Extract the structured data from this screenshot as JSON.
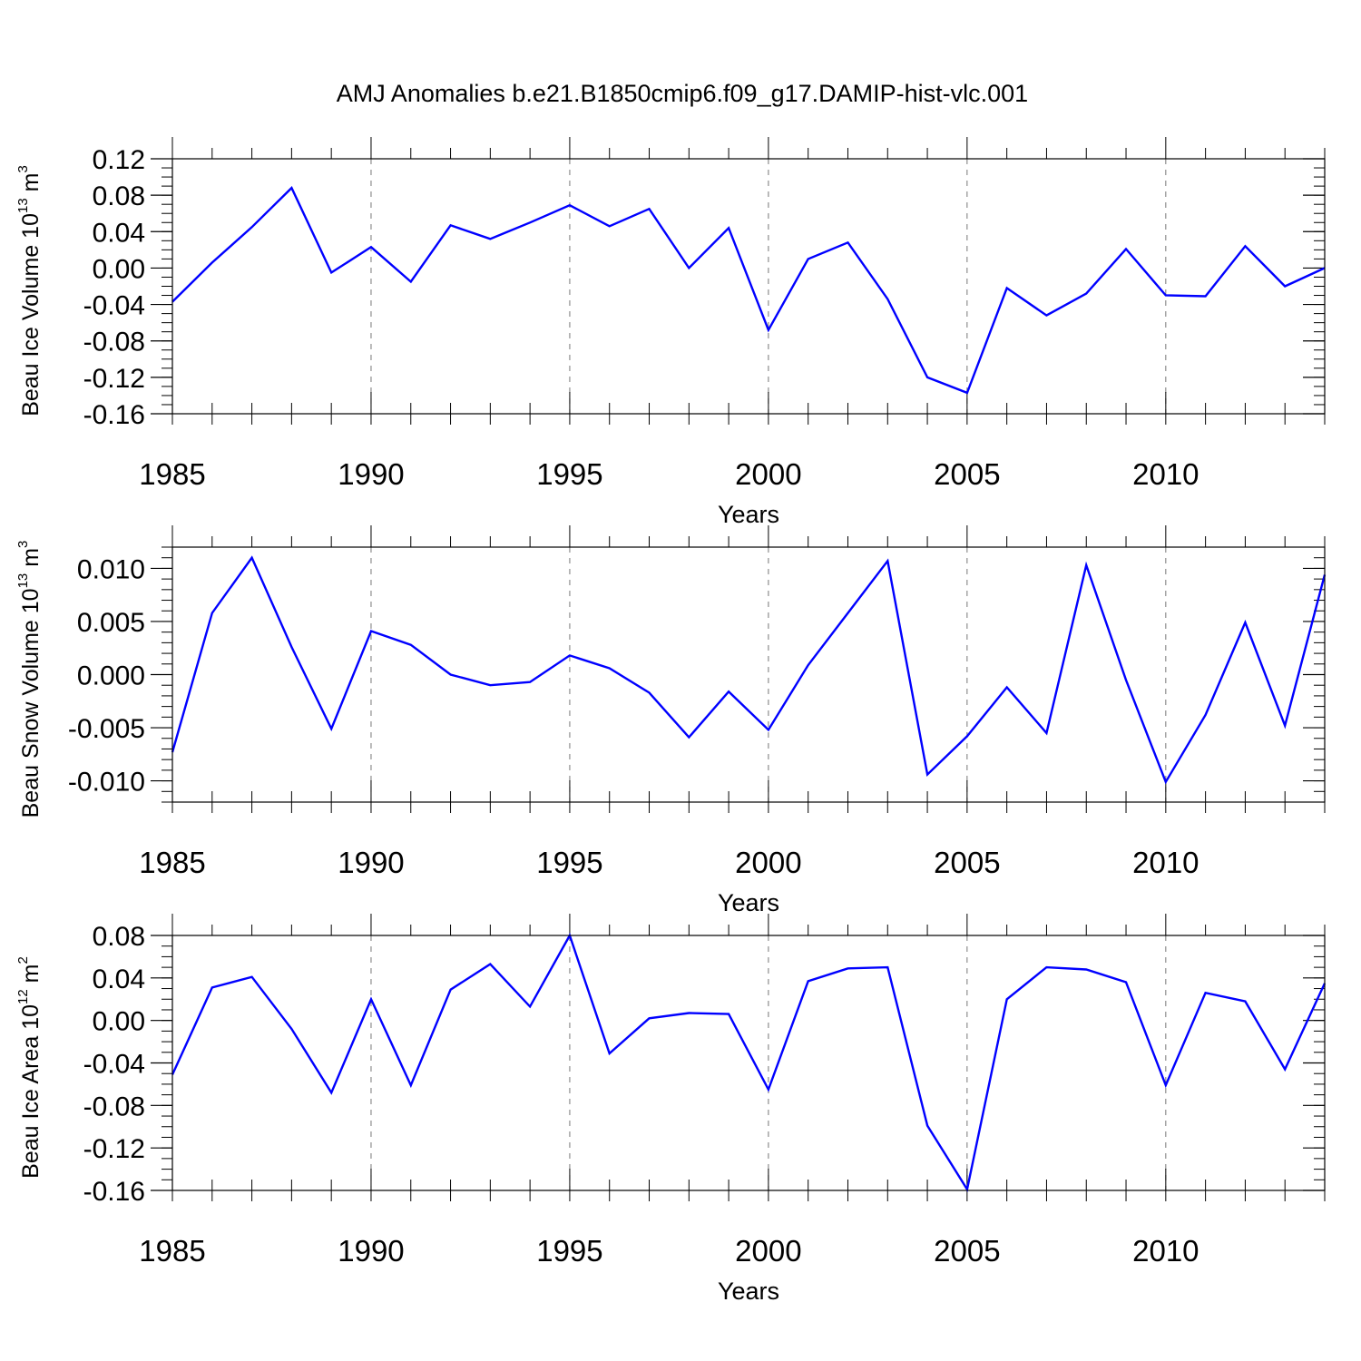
{
  "figure_title": "AMJ Anomalies b.e21.B1850cmip6.f09_g17.DAMIP-hist-vlc.001",
  "chart_data": [
    {
      "type": "line",
      "id": "ice-volume",
      "ylabel": {
        "main": "Beau Ice Volume 10",
        "sup": "13",
        "unit": " m",
        "unit_sup": "3"
      },
      "xlabel": "Years",
      "xlim": [
        1985,
        2014
      ],
      "ylim": [
        -0.16,
        0.12
      ],
      "x_ticks": [
        "1985",
        "1990",
        "1995",
        "2000",
        "2005",
        "2010"
      ],
      "y_ticks": [
        "0.12",
        "0.08",
        "0.04",
        "0.00",
        "-0.04",
        "-0.08",
        "-0.12",
        "-0.16"
      ],
      "y_tick_values": [
        0.12,
        0.08,
        0.04,
        0.0,
        -0.04,
        -0.08,
        -0.12,
        -0.16
      ],
      "y_minor_step": 0.01,
      "grid": "vertical dashed at 1990, 1995, 2000, 2005, 2010",
      "line_color": "#0000ff",
      "x": [
        1985,
        1986,
        1987,
        1988,
        1989,
        1990,
        1991,
        1992,
        1993,
        1994,
        1995,
        1996,
        1997,
        1998,
        1999,
        2000,
        2001,
        2002,
        2003,
        2004,
        2005,
        2006,
        2007,
        2008,
        2009,
        2010,
        2011,
        2012,
        2013,
        2014
      ],
      "values": [
        -0.037,
        0.006,
        0.045,
        0.088,
        -0.005,
        0.023,
        -0.015,
        0.047,
        0.032,
        0.05,
        0.069,
        0.046,
        0.065,
        0.0,
        0.044,
        -0.068,
        0.01,
        0.028,
        -0.034,
        -0.12,
        -0.137,
        -0.022,
        -0.052,
        -0.028,
        0.021,
        -0.03,
        -0.031,
        0.024,
        -0.02,
        0.0
      ]
    },
    {
      "type": "line",
      "id": "snow-volume",
      "ylabel": {
        "main": "Beau Snow Volume 10",
        "sup": "13",
        "unit": " m",
        "unit_sup": "3"
      },
      "xlabel": "Years",
      "xlim": [
        1985,
        2014
      ],
      "ylim": [
        -0.012,
        0.012
      ],
      "x_ticks": [
        "1985",
        "1990",
        "1995",
        "2000",
        "2005",
        "2010"
      ],
      "y_ticks": [
        "0.010",
        "0.005",
        "0.000",
        "-0.005",
        "-0.010"
      ],
      "y_tick_values": [
        0.01,
        0.005,
        0.0,
        -0.005,
        -0.01
      ],
      "y_minor_step": 0.001,
      "grid": "vertical dashed at 1990, 1995, 2000, 2005, 2010",
      "line_color": "#0000ff",
      "x": [
        1985,
        1986,
        1987,
        1988,
        1989,
        1990,
        1991,
        1992,
        1993,
        1994,
        1995,
        1996,
        1997,
        1998,
        1999,
        2000,
        2001,
        2002,
        2003,
        2004,
        2005,
        2006,
        2007,
        2008,
        2009,
        2010,
        2011,
        2012,
        2013,
        2014
      ],
      "values": [
        -0.0073,
        0.0058,
        0.011,
        0.0026,
        -0.0051,
        0.0041,
        0.0028,
        0.0,
        -0.001,
        -0.0007,
        0.0018,
        0.0006,
        -0.0017,
        -0.0059,
        -0.0016,
        -0.0052,
        0.0009,
        0.0058,
        0.0107,
        -0.0094,
        -0.0058,
        -0.0012,
        -0.0055,
        0.0103,
        -0.0005,
        -0.0101,
        -0.0038,
        0.0049,
        -0.0048,
        0.0094
      ]
    },
    {
      "type": "line",
      "id": "ice-area",
      "ylabel": {
        "main": "Beau Ice Area 10",
        "sup": "12",
        "unit": " m",
        "unit_sup": "2"
      },
      "xlabel": "Years",
      "xlim": [
        1985,
        2014
      ],
      "ylim": [
        -0.16,
        0.08
      ],
      "x_ticks": [
        "1985",
        "1990",
        "1995",
        "2000",
        "2005",
        "2010"
      ],
      "y_ticks": [
        "0.08",
        "0.04",
        "0.00",
        "-0.04",
        "-0.08",
        "-0.12",
        "-0.16"
      ],
      "y_tick_values": [
        0.08,
        0.04,
        0.0,
        -0.04,
        -0.08,
        -0.12,
        -0.16
      ],
      "y_minor_step": 0.01,
      "grid": "vertical dashed at 1990, 1995, 2000, 2005, 2010",
      "line_color": "#0000ff",
      "x": [
        1985,
        1986,
        1987,
        1988,
        1989,
        1990,
        1991,
        1992,
        1993,
        1994,
        1995,
        1996,
        1997,
        1998,
        1999,
        2000,
        2001,
        2002,
        2003,
        2004,
        2005,
        2006,
        2007,
        2008,
        2009,
        2010,
        2011,
        2012,
        2013,
        2014
      ],
      "values": [
        -0.051,
        0.031,
        0.041,
        -0.008,
        -0.068,
        0.02,
        -0.061,
        0.029,
        0.053,
        0.013,
        0.08,
        -0.031,
        0.002,
        0.007,
        0.006,
        -0.065,
        0.037,
        0.049,
        0.05,
        -0.099,
        -0.159,
        0.02,
        0.05,
        0.048,
        0.036,
        -0.061,
        0.026,
        0.018,
        -0.046,
        0.035
      ]
    }
  ]
}
